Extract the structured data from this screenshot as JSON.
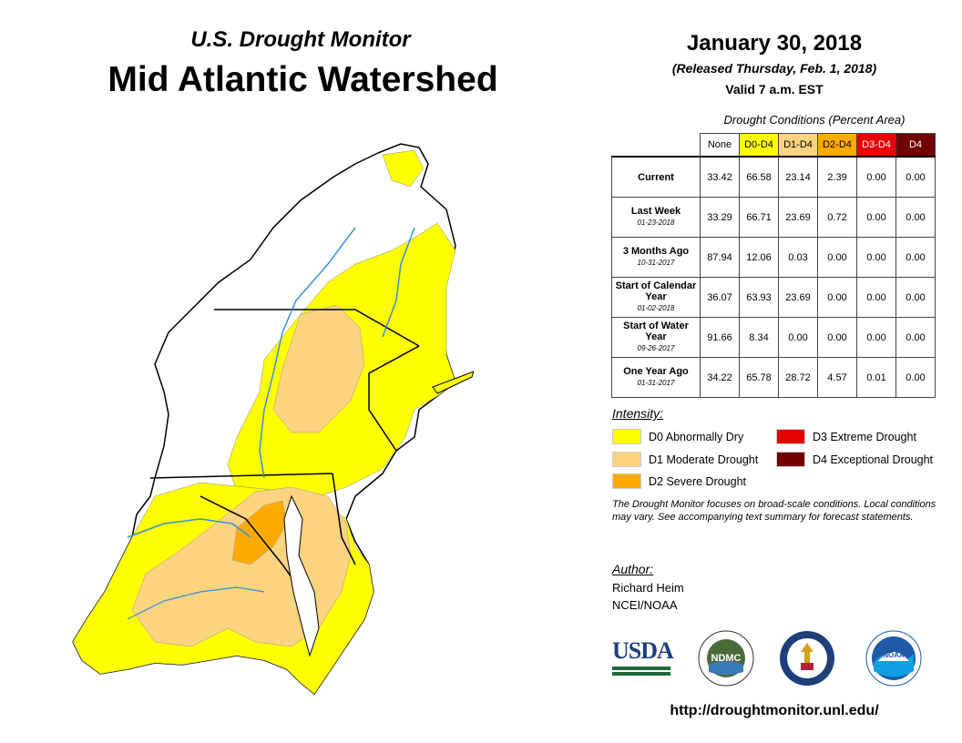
{
  "header": {
    "subtitle": "U.S. Drought Monitor",
    "title": "Mid Atlantic Watershed",
    "date": "January 30, 2018",
    "released": "(Released Thursday, Feb. 1, 2018)",
    "valid": "Valid 7 a.m. EST"
  },
  "table": {
    "caption": "Drought Conditions (Percent Area)",
    "columns": [
      "None",
      "D0-D4",
      "D1-D4",
      "D2-D4",
      "D3-D4",
      "D4"
    ],
    "column_colors": [
      "#ffffff",
      "#ffff00",
      "#fcd37f",
      "#ffaa00",
      "#e60000",
      "#730000"
    ],
    "rows": [
      {
        "label": "Current",
        "sublabel": "",
        "values": [
          "33.42",
          "66.58",
          "23.14",
          "2.39",
          "0.00",
          "0.00"
        ]
      },
      {
        "label": "Last Week",
        "sublabel": "01-23-2018",
        "values": [
          "33.29",
          "66.71",
          "23.69",
          "0.72",
          "0.00",
          "0.00"
        ]
      },
      {
        "label": "3 Months Ago",
        "sublabel": "10-31-2017",
        "values": [
          "87.94",
          "12.06",
          "0.03",
          "0.00",
          "0.00",
          "0.00"
        ]
      },
      {
        "label": "Start of Calendar Year",
        "sublabel": "01-02-2018",
        "values": [
          "36.07",
          "63.93",
          "23.69",
          "0.00",
          "0.00",
          "0.00"
        ]
      },
      {
        "label": "Start of Water Year",
        "sublabel": "09-26-2017",
        "values": [
          "91.66",
          "8.34",
          "0.00",
          "0.00",
          "0.00",
          "0.00"
        ]
      },
      {
        "label": "One Year Ago",
        "sublabel": "01-31-2017",
        "values": [
          "34.22",
          "65.78",
          "28.72",
          "4.57",
          "0.01",
          "0.00"
        ]
      }
    ]
  },
  "legend": {
    "title": "Intensity:",
    "items": [
      {
        "label": "D0 Abnormally Dry",
        "color": "#ffff00"
      },
      {
        "label": "D1 Moderate Drought",
        "color": "#fcd37f"
      },
      {
        "label": "D2 Severe Drought",
        "color": "#ffaa00"
      },
      {
        "label": "D3 Extreme Drought",
        "color": "#e60000"
      },
      {
        "label": "D4 Exceptional Drought",
        "color": "#730000"
      }
    ]
  },
  "note": "The Drought Monitor focuses on broad-scale conditions. Local conditions may vary. See accompanying text summary for forecast statements.",
  "author": {
    "title": "Author:",
    "name": "Richard Heim",
    "org": "NCEI/NOAA"
  },
  "logos": {
    "usda": "USDA",
    "ndmc": "NDMC",
    "noaa": "NOAA"
  },
  "url": "http://droughtmonitor.unl.edu/",
  "map_colors": {
    "none": "#ffffff",
    "d0": "#ffff00",
    "d1": "#fcd37f",
    "d2": "#ffaa00",
    "river": "#3a8fd8",
    "border": "#000000"
  }
}
